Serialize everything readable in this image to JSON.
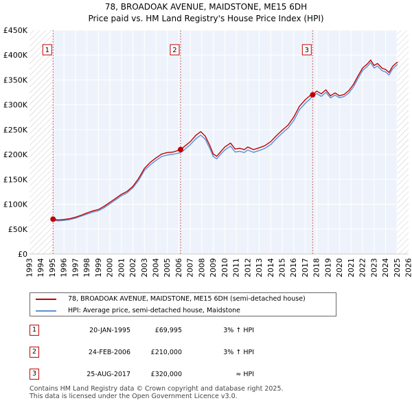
{
  "title_line1": "78, BROADOAK AVENUE, MAIDSTONE, ME15 6DH",
  "title_line2": "Price paid vs. HM Land Registry's House Price Index (HPI)",
  "chart_data": {
    "type": "line",
    "x_range": [
      1993,
      2026
    ],
    "y_range": [
      0,
      450000
    ],
    "x_ticks": [
      "1993",
      "1994",
      "1995",
      "1996",
      "1997",
      "1998",
      "1999",
      "2000",
      "2001",
      "2002",
      "2003",
      "2004",
      "2005",
      "2006",
      "2007",
      "2008",
      "2009",
      "2010",
      "2011",
      "2012",
      "2013",
      "2014",
      "2015",
      "2016",
      "2017",
      "2018",
      "2019",
      "2020",
      "2021",
      "2022",
      "2023",
      "2024",
      "2025",
      "2026"
    ],
    "y_ticks": [
      {
        "value": 0,
        "label": "£0"
      },
      {
        "value": 50000,
        "label": "£50K"
      },
      {
        "value": 100000,
        "label": "£100K"
      },
      {
        "value": 150000,
        "label": "£150K"
      },
      {
        "value": 200000,
        "label": "£200K"
      },
      {
        "value": 250000,
        "label": "£250K"
      },
      {
        "value": 300000,
        "label": "£300K"
      },
      {
        "value": 350000,
        "label": "£350K"
      },
      {
        "value": 400000,
        "label": "£400K"
      },
      {
        "value": 450000,
        "label": "£450K"
      }
    ],
    "grid": true,
    "hatched_ranges": [
      [
        1993,
        1995.05
      ],
      [
        2025.0,
        2026
      ]
    ],
    "series": [
      {
        "name": "78, BROADOAK AVENUE, MAIDSTONE, ME15 6DH (semi-detached house)",
        "color": "#c00000",
        "points": [
          [
            1995.05,
            69995
          ],
          [
            1995.5,
            68500
          ],
          [
            1996,
            69500
          ],
          [
            1996.5,
            71000
          ],
          [
            1997,
            74000
          ],
          [
            1997.5,
            78000
          ],
          [
            1998,
            82500
          ],
          [
            1998.5,
            86500
          ],
          [
            1999,
            89500
          ],
          [
            1999.5,
            96000
          ],
          [
            2000,
            104000
          ],
          [
            2000.5,
            112000
          ],
          [
            2001,
            120000
          ],
          [
            2001.5,
            126000
          ],
          [
            2002,
            136000
          ],
          [
            2002.5,
            152000
          ],
          [
            2003,
            172000
          ],
          [
            2003.5,
            184000
          ],
          [
            2004,
            193000
          ],
          [
            2004.5,
            201000
          ],
          [
            2005,
            204000
          ],
          [
            2005.5,
            205000
          ],
          [
            2006.15,
            210000
          ],
          [
            2006.5,
            216500
          ],
          [
            2007,
            226000
          ],
          [
            2007.5,
            239000
          ],
          [
            2007.9,
            246000
          ],
          [
            2008.3,
            237000
          ],
          [
            2008.7,
            218000
          ],
          [
            2009.0,
            201000
          ],
          [
            2009.3,
            196500
          ],
          [
            2009.7,
            207000
          ],
          [
            2010,
            215000
          ],
          [
            2010.5,
            223000
          ],
          [
            2010.9,
            211000
          ],
          [
            2011.3,
            212500
          ],
          [
            2011.7,
            210000
          ],
          [
            2012.0,
            215000
          ],
          [
            2012.5,
            210000
          ],
          [
            2013,
            213500
          ],
          [
            2013.5,
            218000
          ],
          [
            2014,
            226000
          ],
          [
            2014.5,
            238000
          ],
          [
            2015,
            249000
          ],
          [
            2015.5,
            259000
          ],
          [
            2016,
            275000
          ],
          [
            2016.5,
            297000
          ],
          [
            2017.0,
            310000
          ],
          [
            2017.4,
            318000
          ],
          [
            2017.65,
            320000
          ],
          [
            2018,
            327500
          ],
          [
            2018.4,
            322000
          ],
          [
            2018.8,
            330000
          ],
          [
            2019.2,
            318000
          ],
          [
            2019.6,
            324000
          ],
          [
            2020,
            318000
          ],
          [
            2020.4,
            321000
          ],
          [
            2020.8,
            328500
          ],
          [
            2021.2,
            341000
          ],
          [
            2021.6,
            358000
          ],
          [
            2022,
            374000
          ],
          [
            2022.4,
            382000
          ],
          [
            2022.7,
            390000
          ],
          [
            2023.0,
            379000
          ],
          [
            2023.3,
            383000
          ],
          [
            2023.7,
            373500
          ],
          [
            2024.0,
            371000
          ],
          [
            2024.3,
            365000
          ],
          [
            2024.6,
            377000
          ],
          [
            2024.9,
            383500
          ],
          [
            2025.05,
            386000
          ]
        ]
      },
      {
        "name": "HPI: Average price, semi-detached house, Maidstone",
        "color": "#5b8fd1",
        "points": [
          [
            1995.05,
            67900
          ],
          [
            1995.5,
            66500
          ],
          [
            1996,
            67500
          ],
          [
            1996.5,
            69000
          ],
          [
            1997,
            72000
          ],
          [
            1997.5,
            76000
          ],
          [
            1998,
            80000
          ],
          [
            1998.5,
            84000
          ],
          [
            1999,
            87000
          ],
          [
            1999.5,
            93000
          ],
          [
            2000,
            101000
          ],
          [
            2000.5,
            109000
          ],
          [
            2001,
            117000
          ],
          [
            2001.5,
            123000
          ],
          [
            2002,
            133000
          ],
          [
            2002.5,
            148000
          ],
          [
            2003,
            168000
          ],
          [
            2003.5,
            179000
          ],
          [
            2004,
            188000
          ],
          [
            2004.5,
            196000
          ],
          [
            2005,
            199000
          ],
          [
            2005.5,
            200500
          ],
          [
            2006.15,
            203700
          ],
          [
            2006.5,
            210000
          ],
          [
            2007,
            220000
          ],
          [
            2007.5,
            232000
          ],
          [
            2007.9,
            239000
          ],
          [
            2008.3,
            231000
          ],
          [
            2008.7,
            212000
          ],
          [
            2009.0,
            196000
          ],
          [
            2009.3,
            191500
          ],
          [
            2009.7,
            202000
          ],
          [
            2010,
            209000
          ],
          [
            2010.5,
            217000
          ],
          [
            2010.9,
            205000
          ],
          [
            2011.3,
            206500
          ],
          [
            2011.7,
            204000
          ],
          [
            2012.0,
            209000
          ],
          [
            2012.5,
            204500
          ],
          [
            2013,
            208000
          ],
          [
            2013.5,
            212500
          ],
          [
            2014,
            220000
          ],
          [
            2014.5,
            232000
          ],
          [
            2015,
            243000
          ],
          [
            2015.5,
            253000
          ],
          [
            2016,
            268000
          ],
          [
            2016.5,
            290000
          ],
          [
            2017.0,
            303000
          ],
          [
            2017.4,
            311000
          ],
          [
            2017.65,
            318000
          ],
          [
            2018,
            322500
          ],
          [
            2018.4,
            317000
          ],
          [
            2018.8,
            325000
          ],
          [
            2019.2,
            314000
          ],
          [
            2019.6,
            319500
          ],
          [
            2020,
            314000
          ],
          [
            2020.4,
            317000
          ],
          [
            2020.8,
            323500
          ],
          [
            2021.2,
            336000
          ],
          [
            2021.6,
            353000
          ],
          [
            2022,
            369000
          ],
          [
            2022.4,
            377000
          ],
          [
            2022.7,
            385000
          ],
          [
            2023.0,
            374000
          ],
          [
            2023.3,
            378000
          ],
          [
            2023.7,
            368500
          ],
          [
            2024.0,
            366000
          ],
          [
            2024.3,
            360000
          ],
          [
            2024.6,
            372000
          ],
          [
            2024.9,
            378500
          ],
          [
            2025.05,
            381000
          ]
        ]
      }
    ],
    "sales": [
      {
        "label": "1",
        "x": 1995.05,
        "value": 69995
      },
      {
        "label": "2",
        "x": 2006.15,
        "value": 210000
      },
      {
        "label": "3",
        "x": 2017.65,
        "value": 320000
      }
    ]
  },
  "legend": {
    "property_label": "78, BROADOAK AVENUE, MAIDSTONE, ME15 6DH (semi-detached house)",
    "hpi_label": "HPI: Average price, semi-detached house, Maidstone",
    "property_color": "#c00000",
    "hpi_color": "#5b8fd1"
  },
  "sales_table": [
    {
      "num": "1",
      "date": "20-JAN-1995",
      "price": "£69,995",
      "hpi": "3% ↑ HPI"
    },
    {
      "num": "2",
      "date": "24-FEB-2006",
      "price": "£210,000",
      "hpi": "3% ↑ HPI"
    },
    {
      "num": "3",
      "date": "25-AUG-2017",
      "price": "£320,000",
      "hpi": "≈ HPI"
    }
  ],
  "footer_line1": "Contains HM Land Registry data © Crown copyright and database right 2025.",
  "footer_line2": "This data is licensed under the Open Government Licence v3.0."
}
